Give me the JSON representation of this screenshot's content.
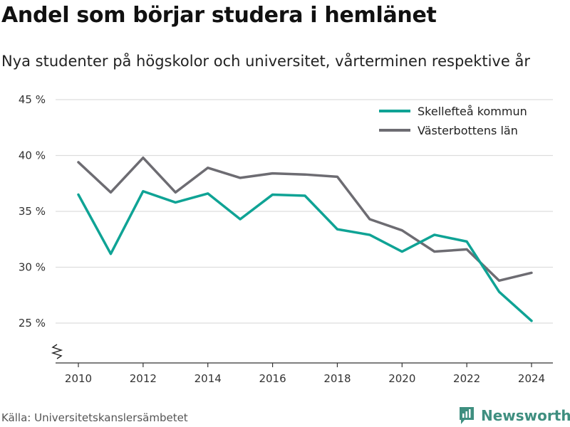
{
  "header": {
    "title": "Andel som börjar studera i hemlänet",
    "subtitle": "Nya studenter på högskolor och universitet, vårterminen respektive år"
  },
  "footer": {
    "source": "Källa: Universitetskanslersämbetet",
    "brand": "Newsworthy"
  },
  "colors": {
    "series1": "#0fa395",
    "series2": "#6d6c72",
    "grid": "#dddddd",
    "axis": "#333333",
    "brand": "#3f8f80"
  },
  "chart_data": {
    "type": "line",
    "x": [
      2010,
      2011,
      2012,
      2013,
      2014,
      2015,
      2016,
      2017,
      2018,
      2019,
      2020,
      2021,
      2022,
      2023,
      2024
    ],
    "series": [
      {
        "name": "Skellefteå kommun",
        "values": [
          36.5,
          31.2,
          36.8,
          35.8,
          36.6,
          34.3,
          36.5,
          36.4,
          33.4,
          32.9,
          31.4,
          32.9,
          32.3,
          27.8,
          25.2
        ]
      },
      {
        "name": "Västerbottens län",
        "values": [
          39.4,
          36.7,
          39.8,
          36.7,
          38.9,
          38.0,
          38.4,
          38.3,
          38.1,
          34.3,
          33.3,
          31.4,
          31.6,
          28.8,
          29.5
        ]
      }
    ],
    "y_ticks": [
      "25 %",
      "30 %",
      "35 %",
      "40 %",
      "45 %"
    ],
    "x_ticks": [
      "2010",
      "2012",
      "2014",
      "2016",
      "2018",
      "2020",
      "2022",
      "2024"
    ],
    "ylim": [
      25,
      45
    ],
    "y_axis_break": true,
    "grid": true,
    "legend_position": "top-right"
  }
}
